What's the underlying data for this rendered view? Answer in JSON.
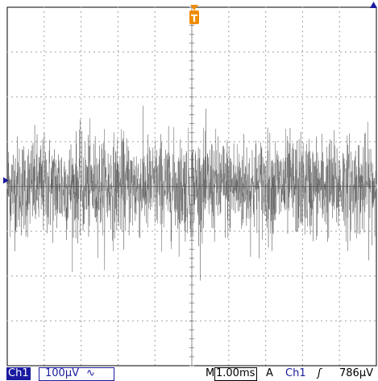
{
  "trigger_marker": {
    "label": "T",
    "color": "#f08c00"
  },
  "trigger_level_marker": {
    "color": "#1a1aa0"
  },
  "channel_ground_marker": {
    "color": "#1a1aa0"
  },
  "statusbar": {
    "channel": "Ch1",
    "vertical_scale": "100μV",
    "coupling_icon": "∿",
    "timebase_prefix": "M",
    "timebase": "1.00ms",
    "acquire_mode": "A",
    "trigger_source": "Ch1",
    "trigger_slope_icon": "ʃ",
    "trigger_level": "786μV"
  },
  "colors": {
    "trace": "#555555",
    "grid": "#7a7a7a",
    "channel": "#1a1aa0",
    "trigger": "#f08c00"
  },
  "chart_data": {
    "type": "line",
    "title": "",
    "xlabel": "",
    "ylabel": "",
    "grid": true,
    "divisions": {
      "x": 10,
      "y": 8
    },
    "x_per_div": "1.00ms",
    "y_per_div": "100μV",
    "series": [
      {
        "name": "",
        "description_of_signal": "",
        "points": 2000,
        "rms_divisions": 0.55,
        "peak_divisions": 2.1
      }
    ]
  }
}
